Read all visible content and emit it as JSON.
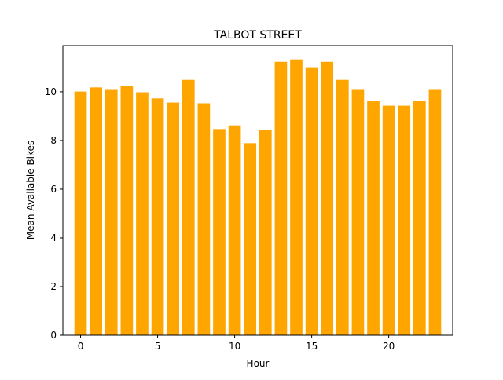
{
  "chart_data": {
    "type": "bar",
    "title": "TALBOT STREET",
    "xlabel": "Hour",
    "ylabel": "Mean Available Bikes",
    "x": [
      0,
      1,
      2,
      3,
      4,
      5,
      6,
      7,
      8,
      9,
      10,
      11,
      12,
      13,
      14,
      15,
      16,
      17,
      18,
      19,
      20,
      21,
      22,
      23
    ],
    "values": [
      10.01,
      10.18,
      10.11,
      10.24,
      9.98,
      9.73,
      9.56,
      10.49,
      9.53,
      8.47,
      8.62,
      7.89,
      8.44,
      11.23,
      11.33,
      11.01,
      11.23,
      10.49,
      10.11,
      9.61,
      9.43,
      9.43,
      9.61,
      10.11
    ],
    "xlim": [
      -1.15,
      24.15
    ],
    "ylim": [
      0,
      11.9
    ],
    "xticks": [
      0,
      5,
      10,
      15,
      20
    ],
    "yticks": [
      0,
      2,
      4,
      6,
      8,
      10
    ],
    "xtick_labels": [
      "0",
      "5",
      "10",
      "15",
      "20"
    ],
    "ytick_labels": [
      "0",
      "2",
      "4",
      "6",
      "8",
      "10"
    ],
    "grid": false,
    "bar_color": "#ffa500"
  }
}
